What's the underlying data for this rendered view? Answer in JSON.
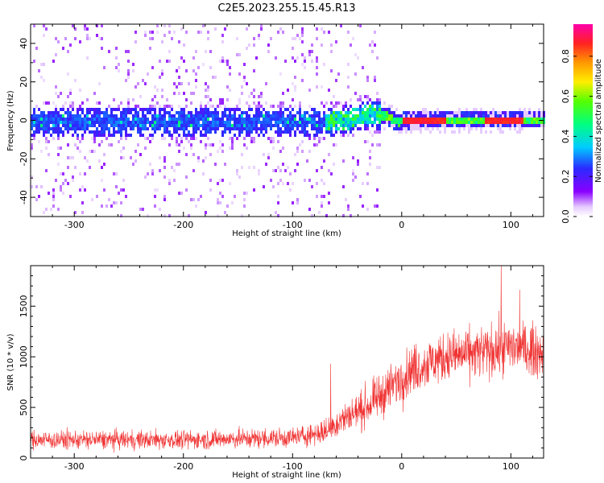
{
  "title": "C2E5.2023.255.15.45.R13",
  "chart_data": [
    {
      "type": "heatmap",
      "xlabel": "Height of straight line (km)",
      "ylabel": "Frequency (Hz)",
      "xlim": [
        -340,
        130
      ],
      "ylim": [
        -50,
        50
      ],
      "xticks": [
        -300,
        -200,
        -100,
        0,
        100
      ],
      "yticks": [
        -40,
        -20,
        0,
        20,
        40
      ],
      "colorbar": {
        "label": "Normalized spectral amplitude",
        "range": [
          0,
          0.96
        ],
        "ticks": [
          "0.0",
          "0.2",
          "0.4",
          "0.6",
          "0.8"
        ],
        "colormap": "rainbow (white → purple → blue → cyan → green → yellow → orange → red → magenta)"
      },
      "features": {
        "noisy_region_x": [
          -340,
          -20
        ],
        "noise_band_halfwidth_hz": 10,
        "signal_center_hz": [
          {
            "x": -340,
            "y": 0
          },
          {
            "x": -100,
            "y": 0
          },
          {
            "x": -60,
            "y": 0
          },
          {
            "x": -45,
            "y": 2
          },
          {
            "x": -30,
            "y": 4
          },
          {
            "x": -15,
            "y": 3
          },
          {
            "x": -5,
            "y": 0
          },
          {
            "x": 10,
            "y": 1
          },
          {
            "x": 130,
            "y": 1
          }
        ]
      }
    },
    {
      "type": "line",
      "xlabel": "Height of straight line (km)",
      "ylabel": "SNR (10 * v/v)",
      "xlim": [
        -340,
        130
      ],
      "ylim": [
        0,
        1900
      ],
      "xticks": [
        -300,
        -200,
        -100,
        0,
        100
      ],
      "yticks": [
        0,
        500,
        1000,
        1500
      ],
      "color": "#f03232",
      "envelope": [
        {
          "x": -340,
          "mean": 180,
          "spread": 130
        },
        {
          "x": -200,
          "mean": 180,
          "spread": 130
        },
        {
          "x": -100,
          "mean": 200,
          "spread": 140
        },
        {
          "x": -70,
          "mean": 260,
          "spread": 170
        },
        {
          "x": -55,
          "mean": 380,
          "spread": 220
        },
        {
          "x": -30,
          "mean": 520,
          "spread": 280
        },
        {
          "x": -10,
          "mean": 700,
          "spread": 320
        },
        {
          "x": 10,
          "mean": 880,
          "spread": 340
        },
        {
          "x": 40,
          "mean": 1000,
          "spread": 350
        },
        {
          "x": 80,
          "mean": 1050,
          "spread": 370
        },
        {
          "x": 100,
          "mean": 1100,
          "spread": 370
        },
        {
          "x": 130,
          "mean": 1050,
          "spread": 350
        }
      ],
      "spikes": [
        {
          "x": -65,
          "y": 930
        },
        {
          "x": 91,
          "y": 1900
        },
        {
          "x": 108,
          "y": 1660
        }
      ]
    }
  ]
}
